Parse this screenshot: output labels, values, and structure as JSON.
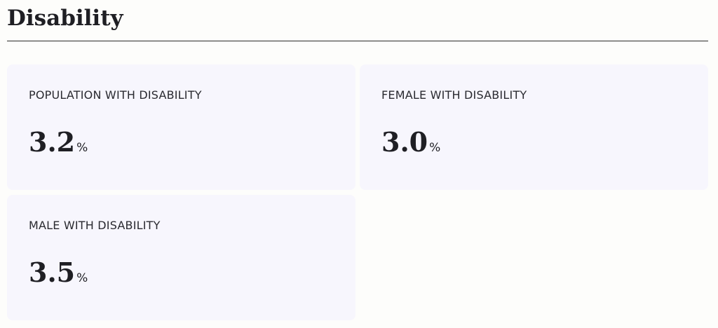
{
  "header": {
    "title": "Disability"
  },
  "cards": [
    {
      "label": "POPULATION WITH DISABILITY",
      "value": "3.2",
      "unit": "%"
    },
    {
      "label": "FEMALE WITH DISABILITY",
      "value": "3.0",
      "unit": "%"
    },
    {
      "label": "MALE WITH DISABILITY",
      "value": "3.5",
      "unit": "%"
    }
  ]
}
